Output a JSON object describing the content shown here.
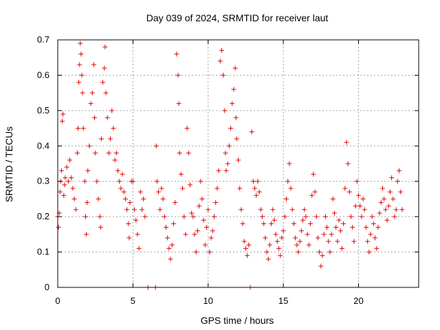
{
  "chart_data": {
    "type": "scatter",
    "title": "Day 039 of 2024, SRMTID for receiver laut",
    "xlabel": "GPS time / hours",
    "ylabel": "SRMTID / TECUs",
    "xlim": [
      0,
      24
    ],
    "ylim": [
      0,
      0.7
    ],
    "xticks": [
      0,
      5,
      10,
      15,
      20
    ],
    "xtick_labels": [
      "0",
      "5",
      "10",
      "15",
      "20"
    ],
    "yticks": [
      0,
      0.1,
      0.2,
      0.3,
      0.4,
      0.5,
      0.6,
      0.7
    ],
    "ytick_labels": [
      "0",
      "0.1",
      "0.2",
      "0.3",
      "0.4",
      "0.5",
      "0.6",
      "0.7"
    ],
    "grid": true,
    "marker": "+",
    "color": "#e00000",
    "series": [
      {
        "name": "SRMTID",
        "points": [
          [
            0.0,
            0.2
          ],
          [
            0.05,
            0.17
          ],
          [
            0.1,
            0.21
          ],
          [
            0.15,
            0.27
          ],
          [
            0.2,
            0.3
          ],
          [
            0.25,
            0.33
          ],
          [
            0.3,
            0.47
          ],
          [
            0.35,
            0.49
          ],
          [
            0.4,
            0.26
          ],
          [
            0.45,
            0.29
          ],
          [
            0.5,
            0.31
          ],
          [
            0.6,
            0.34
          ],
          [
            0.7,
            0.3
          ],
          [
            0.8,
            0.36
          ],
          [
            0.9,
            0.31
          ],
          [
            1.0,
            0.28
          ],
          [
            1.1,
            0.25
          ],
          [
            1.2,
            0.22
          ],
          [
            1.3,
            0.38
          ],
          [
            1.35,
            0.45
          ],
          [
            1.4,
            0.58
          ],
          [
            1.45,
            0.63
          ],
          [
            1.5,
            0.69
          ],
          [
            1.55,
            0.66
          ],
          [
            1.6,
            0.6
          ],
          [
            1.65,
            0.55
          ],
          [
            1.7,
            0.45
          ],
          [
            1.8,
            0.3
          ],
          [
            1.85,
            0.2
          ],
          [
            1.9,
            0.15
          ],
          [
            1.95,
            0.24
          ],
          [
            2.0,
            0.33
          ],
          [
            2.1,
            0.4
          ],
          [
            2.2,
            0.52
          ],
          [
            2.3,
            0.55
          ],
          [
            2.4,
            0.63
          ],
          [
            2.45,
            0.48
          ],
          [
            2.5,
            0.38
          ],
          [
            2.6,
            0.3
          ],
          [
            2.7,
            0.25
          ],
          [
            2.8,
            0.2
          ],
          [
            2.85,
            0.17
          ],
          [
            2.9,
            0.42
          ],
          [
            3.0,
            0.58
          ],
          [
            3.1,
            0.62
          ],
          [
            3.15,
            0.68
          ],
          [
            3.2,
            0.55
          ],
          [
            3.3,
            0.48
          ],
          [
            3.4,
            0.38
          ],
          [
            3.5,
            0.42
          ],
          [
            3.6,
            0.5
          ],
          [
            3.7,
            0.45
          ],
          [
            3.8,
            0.36
          ],
          [
            3.9,
            0.38
          ],
          [
            4.0,
            0.33
          ],
          [
            4.1,
            0.3
          ],
          [
            4.2,
            0.28
          ],
          [
            4.3,
            0.32
          ],
          [
            4.4,
            0.27
          ],
          [
            4.5,
            0.25
          ],
          [
            4.6,
            0.22
          ],
          [
            4.7,
            0.18
          ],
          [
            4.75,
            0.14
          ],
          [
            4.8,
            0.24
          ],
          [
            4.9,
            0.3
          ],
          [
            5.0,
            0.3
          ],
          [
            5.1,
            0.22
          ],
          [
            5.2,
            0.19
          ],
          [
            5.3,
            0.15
          ],
          [
            5.4,
            0.11
          ],
          [
            5.5,
            0.27
          ],
          [
            5.6,
            0.22
          ],
          [
            5.7,
            0.25
          ],
          [
            5.8,
            0.2
          ],
          [
            6.0,
            0.0
          ],
          [
            6.5,
            0.0
          ],
          [
            6.55,
            0.4
          ],
          [
            6.6,
            0.3
          ],
          [
            6.7,
            0.27
          ],
          [
            6.8,
            0.22
          ],
          [
            6.9,
            0.28
          ],
          [
            7.0,
            0.25
          ],
          [
            7.1,
            0.2
          ],
          [
            7.2,
            0.17
          ],
          [
            7.3,
            0.14
          ],
          [
            7.4,
            0.11
          ],
          [
            7.5,
            0.08
          ],
          [
            7.6,
            0.12
          ],
          [
            7.7,
            0.18
          ],
          [
            7.8,
            0.24
          ],
          [
            7.9,
            0.66
          ],
          [
            8.0,
            0.6
          ],
          [
            8.05,
            0.52
          ],
          [
            8.1,
            0.38
          ],
          [
            8.2,
            0.32
          ],
          [
            8.3,
            0.28
          ],
          [
            8.4,
            0.2
          ],
          [
            8.5,
            0.15
          ],
          [
            8.6,
            0.45
          ],
          [
            8.7,
            0.38
          ],
          [
            8.8,
            0.29
          ],
          [
            8.9,
            0.21
          ],
          [
            9.0,
            0.2
          ],
          [
            9.1,
            0.15
          ],
          [
            9.2,
            0.1
          ],
          [
            9.3,
            0.16
          ],
          [
            9.4,
            0.23
          ],
          [
            9.5,
            0.3
          ],
          [
            9.6,
            0.25
          ],
          [
            9.7,
            0.19
          ],
          [
            9.8,
            0.12
          ],
          [
            9.9,
            0.17
          ],
          [
            10.0,
            0.22
          ],
          [
            10.1,
            0.1
          ],
          [
            10.2,
            0.14
          ],
          [
            10.3,
            0.16
          ],
          [
            10.4,
            0.2
          ],
          [
            10.5,
            0.24
          ],
          [
            10.6,
            0.28
          ],
          [
            10.7,
            0.33
          ],
          [
            10.8,
            0.64
          ],
          [
            10.9,
            0.67
          ],
          [
            11.0,
            0.6
          ],
          [
            11.1,
            0.5
          ],
          [
            11.15,
            0.38
          ],
          [
            11.2,
            0.33
          ],
          [
            11.3,
            0.35
          ],
          [
            11.4,
            0.4
          ],
          [
            11.5,
            0.45
          ],
          [
            11.6,
            0.52
          ],
          [
            11.7,
            0.56
          ],
          [
            11.8,
            0.62
          ],
          [
            11.85,
            0.48
          ],
          [
            11.9,
            0.42
          ],
          [
            12.0,
            0.36
          ],
          [
            12.1,
            0.28
          ],
          [
            12.2,
            0.22
          ],
          [
            12.3,
            0.18
          ],
          [
            12.4,
            0.13
          ],
          [
            12.5,
            0.11
          ],
          [
            12.6,
            0.09
          ],
          [
            12.7,
            0.12
          ],
          [
            12.8,
            0.0
          ],
          [
            12.9,
            0.44
          ],
          [
            13.0,
            0.3
          ],
          [
            13.1,
            0.28
          ],
          [
            13.2,
            0.26
          ],
          [
            13.3,
            0.3
          ],
          [
            13.4,
            0.27
          ],
          [
            13.5,
            0.22
          ],
          [
            13.6,
            0.2
          ],
          [
            13.7,
            0.18
          ],
          [
            13.8,
            0.14
          ],
          [
            13.9,
            0.1
          ],
          [
            14.0,
            0.08
          ],
          [
            14.1,
            0.12
          ],
          [
            14.2,
            0.18
          ],
          [
            14.3,
            0.22
          ],
          [
            14.4,
            0.19
          ],
          [
            14.5,
            0.15
          ],
          [
            14.6,
            0.13
          ],
          [
            14.7,
            0.11
          ],
          [
            14.8,
            0.09
          ],
          [
            14.9,
            0.14
          ],
          [
            15.0,
            0.16
          ],
          [
            15.1,
            0.2
          ],
          [
            15.2,
            0.25
          ],
          [
            15.3,
            0.3
          ],
          [
            15.4,
            0.35
          ],
          [
            15.5,
            0.28
          ],
          [
            15.6,
            0.22
          ],
          [
            15.7,
            0.18
          ],
          [
            15.8,
            0.14
          ],
          [
            15.9,
            0.12
          ],
          [
            16.0,
            0.1
          ],
          [
            16.1,
            0.13
          ],
          [
            16.2,
            0.16
          ],
          [
            16.3,
            0.19
          ],
          [
            16.4,
            0.22
          ],
          [
            16.5,
            0.2
          ],
          [
            16.6,
            0.15
          ],
          [
            16.7,
            0.12
          ],
          [
            16.8,
            0.18
          ],
          [
            16.9,
            0.26
          ],
          [
            17.0,
            0.32
          ],
          [
            17.1,
            0.27
          ],
          [
            17.2,
            0.2
          ],
          [
            17.3,
            0.14
          ],
          [
            17.4,
            0.1
          ],
          [
            17.5,
            0.06
          ],
          [
            17.6,
            0.09
          ],
          [
            17.7,
            0.15
          ],
          [
            17.8,
            0.2
          ],
          [
            17.9,
            0.17
          ],
          [
            18.0,
            0.13
          ],
          [
            18.1,
            0.1
          ],
          [
            18.2,
            0.15
          ],
          [
            18.3,
            0.25
          ],
          [
            18.4,
            0.21
          ],
          [
            18.5,
            0.17
          ],
          [
            18.6,
            0.13
          ],
          [
            18.7,
            0.19
          ],
          [
            18.8,
            0.16
          ],
          [
            18.9,
            0.11
          ],
          [
            19.0,
            0.18
          ],
          [
            19.1,
            0.28
          ],
          [
            19.2,
            0.41
          ],
          [
            19.3,
            0.35
          ],
          [
            19.4,
            0.27
          ],
          [
            19.5,
            0.2
          ],
          [
            19.6,
            0.17
          ],
          [
            19.7,
            0.13
          ],
          [
            19.8,
            0.23
          ],
          [
            19.9,
            0.3
          ],
          [
            20.0,
            0.26
          ],
          [
            20.1,
            0.23
          ],
          [
            20.2,
            0.2
          ],
          [
            20.3,
            0.25
          ],
          [
            20.4,
            0.22
          ],
          [
            20.5,
            0.17
          ],
          [
            20.6,
            0.13
          ],
          [
            20.7,
            0.1
          ],
          [
            20.8,
            0.15
          ],
          [
            20.9,
            0.2
          ],
          [
            21.0,
            0.18
          ],
          [
            21.1,
            0.14
          ],
          [
            21.2,
            0.11
          ],
          [
            21.3,
            0.17
          ],
          [
            21.4,
            0.21
          ],
          [
            21.5,
            0.24
          ],
          [
            21.6,
            0.28
          ],
          [
            21.7,
            0.25
          ],
          [
            21.8,
            0.22
          ],
          [
            21.9,
            0.19
          ],
          [
            22.0,
            0.23
          ],
          [
            22.1,
            0.27
          ],
          [
            22.2,
            0.31
          ],
          [
            22.3,
            0.25
          ],
          [
            22.4,
            0.2
          ],
          [
            22.5,
            0.22
          ],
          [
            22.6,
            0.3
          ],
          [
            22.7,
            0.33
          ],
          [
            22.8,
            0.27
          ],
          [
            22.9,
            0.22
          ]
        ]
      }
    ]
  }
}
